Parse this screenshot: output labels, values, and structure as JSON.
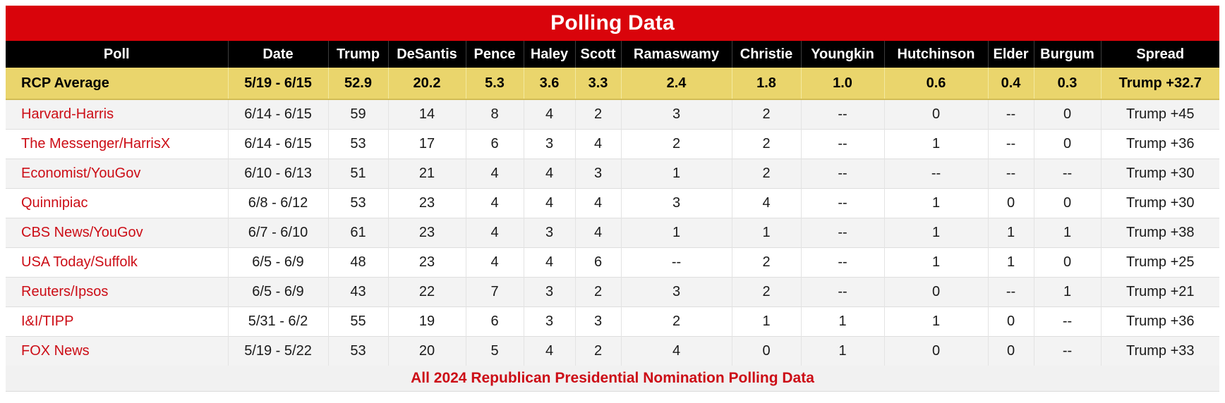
{
  "title": "Polling Data",
  "footer_caption": "All 2024 Republican Presidential Nomination Polling Data",
  "colors": {
    "banner_red": "#D9040B",
    "accent_red": "#CC0D16",
    "header_black": "#000000",
    "highlight_yellow": "#EAD56C",
    "row_alt_gray": "#F3F3F3"
  },
  "table": {
    "columns": [
      "Poll",
      "Date",
      "Trump",
      "DeSantis",
      "Pence",
      "Haley",
      "Scott",
      "Ramaswamy",
      "Christie",
      "Youngkin",
      "Hutchinson",
      "Elder",
      "Burgum",
      "Spread"
    ],
    "average_row": {
      "poll": "RCP Average",
      "date": "5/19 - 6/15",
      "values": [
        "52.9",
        "20.2",
        "5.3",
        "3.6",
        "3.3",
        "2.4",
        "1.8",
        "1.0",
        "0.6",
        "0.4",
        "0.3"
      ],
      "spread": "Trump +32.7"
    },
    "rows": [
      {
        "poll": "Harvard-Harris",
        "date": "6/14 - 6/15",
        "values": [
          "59",
          "14",
          "8",
          "4",
          "2",
          "3",
          "2",
          "--",
          "0",
          "--",
          "0"
        ],
        "spread": "Trump +45"
      },
      {
        "poll": "The Messenger/HarrisX",
        "date": "6/14 - 6/15",
        "values": [
          "53",
          "17",
          "6",
          "3",
          "4",
          "2",
          "2",
          "--",
          "1",
          "--",
          "0"
        ],
        "spread": "Trump +36"
      },
      {
        "poll": "Economist/YouGov",
        "date": "6/10 - 6/13",
        "values": [
          "51",
          "21",
          "4",
          "4",
          "3",
          "1",
          "2",
          "--",
          "--",
          "--",
          "--"
        ],
        "spread": "Trump +30"
      },
      {
        "poll": "Quinnipiac",
        "date": "6/8 - 6/12",
        "values": [
          "53",
          "23",
          "4",
          "4",
          "4",
          "3",
          "4",
          "--",
          "1",
          "0",
          "0"
        ],
        "spread": "Trump +30"
      },
      {
        "poll": "CBS News/YouGov",
        "date": "6/7 - 6/10",
        "values": [
          "61",
          "23",
          "4",
          "3",
          "4",
          "1",
          "1",
          "--",
          "1",
          "1",
          "1"
        ],
        "spread": "Trump +38"
      },
      {
        "poll": "USA Today/Suffolk",
        "date": "6/5 - 6/9",
        "values": [
          "48",
          "23",
          "4",
          "4",
          "6",
          "--",
          "2",
          "--",
          "1",
          "1",
          "0"
        ],
        "spread": "Trump +25"
      },
      {
        "poll": "Reuters/Ipsos",
        "date": "6/5 - 6/9",
        "values": [
          "43",
          "22",
          "7",
          "3",
          "2",
          "3",
          "2",
          "--",
          "0",
          "--",
          "1"
        ],
        "spread": "Trump +21"
      },
      {
        "poll": "I&I/TIPP",
        "date": "5/31 - 6/2",
        "values": [
          "55",
          "19",
          "6",
          "3",
          "3",
          "2",
          "1",
          "1",
          "1",
          "0",
          "--"
        ],
        "spread": "Trump +36"
      },
      {
        "poll": "FOX News",
        "date": "5/19 - 5/22",
        "values": [
          "53",
          "20",
          "5",
          "4",
          "2",
          "4",
          "0",
          "1",
          "0",
          "0",
          "--"
        ],
        "spread": "Trump +33"
      }
    ]
  },
  "chart_data": {
    "type": "table",
    "title": "Polling Data",
    "caption": "All 2024 Republican Presidential Nomination Polling Data",
    "columns": [
      "Poll",
      "Date",
      "Trump",
      "DeSantis",
      "Pence",
      "Haley",
      "Scott",
      "Ramaswamy",
      "Christie",
      "Youngkin",
      "Hutchinson",
      "Elder",
      "Burgum",
      "Spread"
    ],
    "rows": [
      [
        "RCP Average",
        "5/19 - 6/15",
        "52.9",
        "20.2",
        "5.3",
        "3.6",
        "3.3",
        "2.4",
        "1.8",
        "1.0",
        "0.6",
        "0.4",
        "0.3",
        "Trump +32.7"
      ],
      [
        "Harvard-Harris",
        "6/14 - 6/15",
        "59",
        "14",
        "8",
        "4",
        "2",
        "3",
        "2",
        "--",
        "0",
        "--",
        "0",
        "Trump +45"
      ],
      [
        "The Messenger/HarrisX",
        "6/14 - 6/15",
        "53",
        "17",
        "6",
        "3",
        "4",
        "2",
        "2",
        "--",
        "1",
        "--",
        "0",
        "Trump +36"
      ],
      [
        "Economist/YouGov",
        "6/10 - 6/13",
        "51",
        "21",
        "4",
        "4",
        "3",
        "1",
        "2",
        "--",
        "--",
        "--",
        "--",
        "Trump +30"
      ],
      [
        "Quinnipiac",
        "6/8 - 6/12",
        "53",
        "23",
        "4",
        "4",
        "4",
        "3",
        "4",
        "--",
        "1",
        "0",
        "0",
        "Trump +30"
      ],
      [
        "CBS News/YouGov",
        "6/7 - 6/10",
        "61",
        "23",
        "4",
        "3",
        "4",
        "1",
        "1",
        "--",
        "1",
        "1",
        "1",
        "Trump +38"
      ],
      [
        "USA Today/Suffolk",
        "6/5 - 6/9",
        "48",
        "23",
        "4",
        "4",
        "6",
        "--",
        "2",
        "--",
        "1",
        "1",
        "0",
        "Trump +25"
      ],
      [
        "Reuters/Ipsos",
        "6/5 - 6/9",
        "43",
        "22",
        "7",
        "3",
        "2",
        "3",
        "2",
        "--",
        "0",
        "--",
        "1",
        "Trump +21"
      ],
      [
        "I&I/TIPP",
        "5/31 - 6/2",
        "55",
        "19",
        "6",
        "3",
        "3",
        "2",
        "1",
        "1",
        "1",
        "0",
        "--",
        "Trump +36"
      ],
      [
        "FOX News",
        "5/19 - 5/22",
        "53",
        "20",
        "5",
        "4",
        "2",
        "4",
        "0",
        "1",
        "0",
        "0",
        "--",
        "Trump +33"
      ]
    ]
  }
}
